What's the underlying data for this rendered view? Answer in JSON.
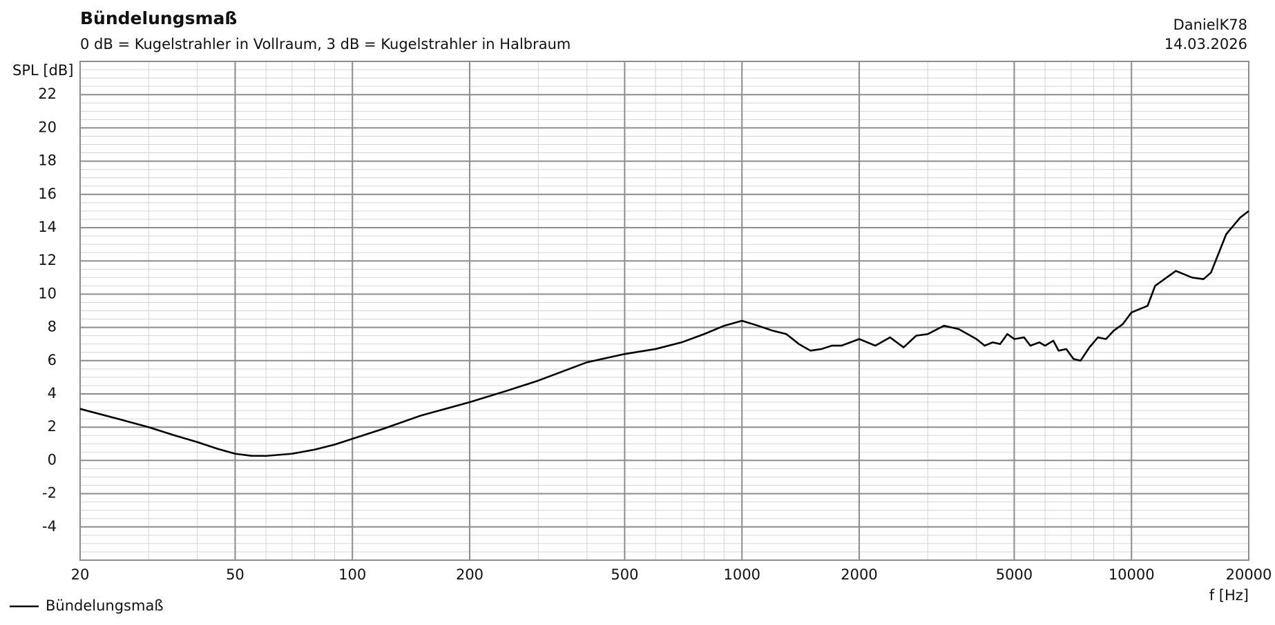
{
  "chart_data": {
    "type": "line",
    "title": "Bündelungsmaß",
    "subtitle": "0 dB = Kugelstrahler in Vollraum, 3 dB = Kugelstrahler in Halbraum",
    "author": "DanielK78",
    "date": "14.03.2026",
    "y_label": "SPL [dB]",
    "x_label": "f [Hz]",
    "log_x": true,
    "grid": true,
    "legend": "bottom-left",
    "xlim": [
      20,
      20000
    ],
    "xticks": [
      20,
      50,
      100,
      200,
      500,
      1000,
      2000,
      5000,
      10000,
      20000
    ],
    "ylim": [
      -6,
      24
    ],
    "yticks": [
      -4,
      -2,
      0,
      2,
      4,
      6,
      8,
      10,
      12,
      14,
      16,
      18,
      20,
      22
    ],
    "x": [
      20,
      25,
      30,
      35,
      40,
      45,
      50,
      55,
      60,
      70,
      80,
      90,
      100,
      120,
      150,
      200,
      250,
      300,
      400,
      500,
      600,
      700,
      800,
      900,
      1000,
      1100,
      1200,
      1300,
      1400,
      1500,
      1600,
      1700,
      1800,
      2000,
      2200,
      2400,
      2600,
      2800,
      3000,
      3300,
      3600,
      4000,
      4200,
      4400,
      4600,
      4800,
      5000,
      5300,
      5500,
      5800,
      6000,
      6300,
      6500,
      6800,
      7100,
      7400,
      7800,
      8200,
      8600,
      9000,
      9500,
      10000,
      11000,
      11500,
      13000,
      14300,
      15300,
      16000,
      17500,
      19000,
      20000
    ],
    "series": [
      {
        "name": "Bündelungsmaß",
        "color": "#000000",
        "values": [
          3.1,
          2.5,
          2.0,
          1.5,
          1.1,
          0.7,
          0.4,
          0.28,
          0.27,
          0.4,
          0.65,
          0.95,
          1.3,
          1.9,
          2.7,
          3.5,
          4.2,
          4.8,
          5.9,
          6.4,
          6.7,
          7.1,
          7.6,
          8.1,
          8.4,
          8.1,
          7.8,
          7.6,
          7.0,
          6.6,
          6.7,
          6.9,
          6.9,
          7.3,
          6.9,
          7.4,
          6.8,
          7.5,
          7.6,
          8.1,
          7.9,
          7.3,
          6.9,
          7.1,
          7.0,
          7.6,
          7.3,
          7.4,
          6.9,
          7.1,
          6.9,
          7.2,
          6.6,
          6.7,
          6.1,
          6.0,
          6.8,
          7.4,
          7.3,
          7.8,
          8.2,
          8.9,
          9.3,
          10.5,
          11.4,
          11.0,
          10.9,
          11.3,
          13.6,
          14.6,
          15.0
        ]
      }
    ]
  }
}
